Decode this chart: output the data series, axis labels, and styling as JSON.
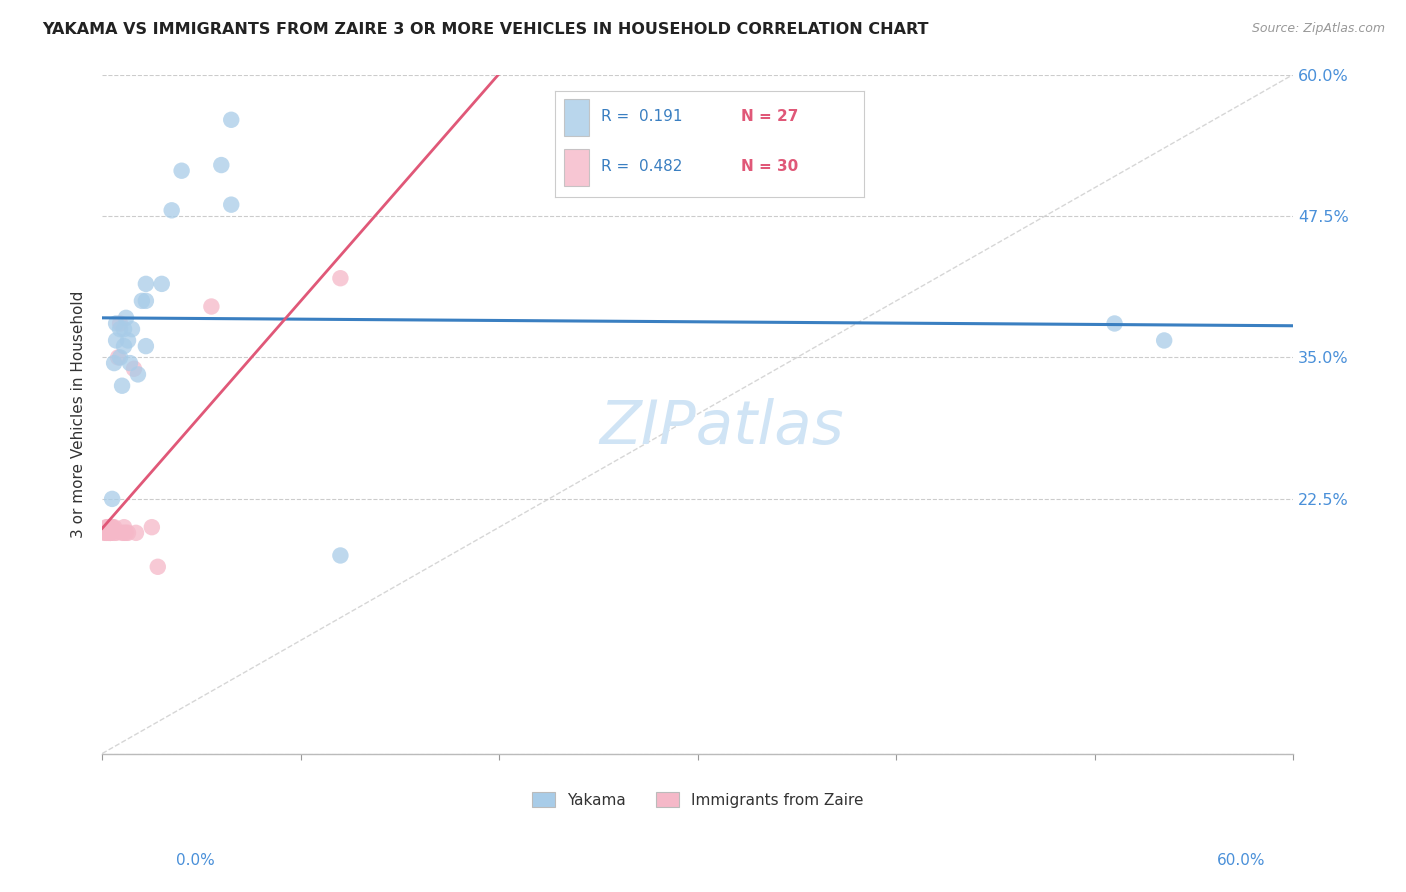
{
  "title": "YAKAMA VS IMMIGRANTS FROM ZAIRE 3 OR MORE VEHICLES IN HOUSEHOLD CORRELATION CHART",
  "source": "Source: ZipAtlas.com",
  "ylabel": "3 or more Vehicles in Household",
  "x_min": 0.0,
  "x_max": 0.6,
  "y_min": 0.0,
  "y_max": 0.6,
  "y_ticks": [
    0.0,
    0.225,
    0.35,
    0.475,
    0.6
  ],
  "y_tick_labels": [
    "",
    "22.5%",
    "35.0%",
    "47.5%",
    "60.0%"
  ],
  "yakama_color": "#a8cce8",
  "zaire_color": "#f5b8c8",
  "trend_yakama_color": "#3a7fc1",
  "trend_zaire_color": "#e05878",
  "diag_color": "#cccccc",
  "background_color": "#ffffff",
  "grid_color": "#cccccc",
  "tick_color": "#4a90d9",
  "title_color": "#222222",
  "source_color": "#999999",
  "watermark": "ZIPatlas",
  "watermark_color": "#d0e4f5",
  "legend_yakama_label": "Yakama",
  "legend_zaire_label": "Immigrants from Zaire",
  "legend_r1_text": "R =  0.191",
  "legend_n1_text": "N = 27",
  "legend_r2_text": "R =  0.482",
  "legend_n2_text": "N = 30",
  "legend_r_color": "#3a7fc1",
  "legend_n_color": "#e05878",
  "yakama_x": [
    0.005,
    0.006,
    0.007,
    0.007,
    0.009,
    0.009,
    0.01,
    0.011,
    0.011,
    0.012,
    0.013,
    0.014,
    0.015,
    0.018,
    0.02,
    0.022,
    0.022,
    0.022,
    0.03,
    0.035,
    0.04,
    0.06,
    0.065,
    0.065,
    0.12,
    0.51,
    0.535
  ],
  "yakama_y": [
    0.225,
    0.345,
    0.38,
    0.365,
    0.375,
    0.35,
    0.325,
    0.375,
    0.36,
    0.385,
    0.365,
    0.345,
    0.375,
    0.335,
    0.4,
    0.4,
    0.415,
    0.36,
    0.415,
    0.48,
    0.515,
    0.52,
    0.56,
    0.485,
    0.175,
    0.38,
    0.365
  ],
  "zaire_x": [
    0.001,
    0.002,
    0.002,
    0.002,
    0.003,
    0.003,
    0.003,
    0.003,
    0.004,
    0.004,
    0.004,
    0.004,
    0.005,
    0.005,
    0.006,
    0.006,
    0.007,
    0.008,
    0.009,
    0.01,
    0.011,
    0.011,
    0.012,
    0.013,
    0.016,
    0.017,
    0.025,
    0.028,
    0.055,
    0.12
  ],
  "zaire_y": [
    0.195,
    0.2,
    0.195,
    0.195,
    0.2,
    0.2,
    0.195,
    0.195,
    0.195,
    0.195,
    0.195,
    0.195,
    0.2,
    0.2,
    0.195,
    0.2,
    0.195,
    0.35,
    0.38,
    0.195,
    0.2,
    0.195,
    0.195,
    0.195,
    0.34,
    0.195,
    0.2,
    0.165,
    0.395,
    0.42
  ]
}
